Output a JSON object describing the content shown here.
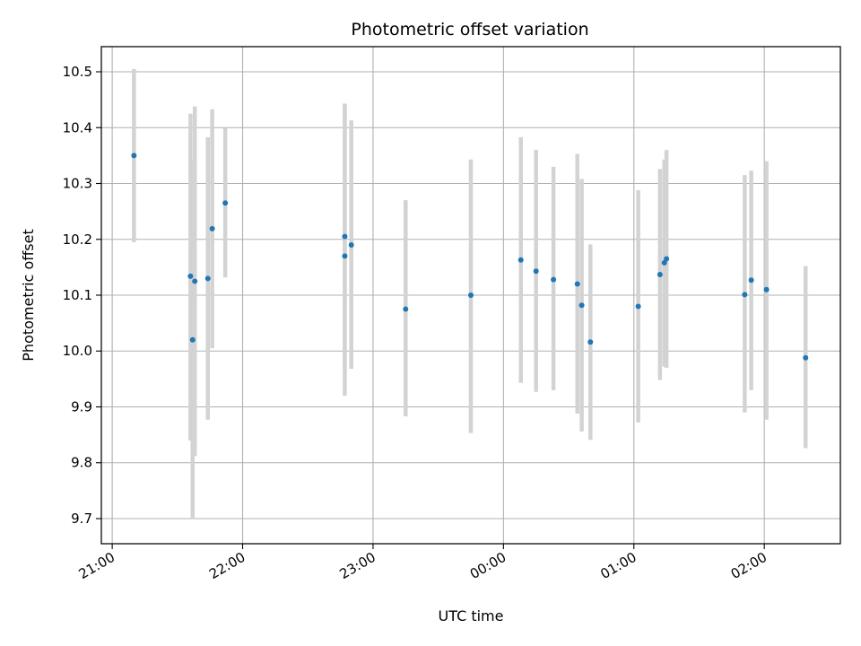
{
  "chart_data": {
    "type": "scatter",
    "title": "Photometric offset variation",
    "xlabel": "UTC time",
    "ylabel": "Photometric offset",
    "grid": true,
    "x_tick_labels": [
      "21:00",
      "22:00",
      "23:00",
      "00:00",
      "01:00",
      "02:00"
    ],
    "y_tick_labels": [
      "9.7",
      "9.8",
      "9.9",
      "10.0",
      "10.1",
      "10.2",
      "10.3",
      "10.4",
      "10.5"
    ],
    "xlim": [
      "20:55",
      "02:35"
    ],
    "ylim": [
      9.655,
      10.545
    ],
    "colors": {
      "points": "#1f77b4",
      "errorbars": "#d3d3d3",
      "grid": "#b0b0b0"
    },
    "points": [
      {
        "x": "21:10",
        "y": 10.35,
        "low": 10.195,
        "high": 10.505
      },
      {
        "x": "21:36",
        "y": 10.134,
        "low": 9.84,
        "high": 10.425
      },
      {
        "x": "21:37",
        "y": 10.02,
        "low": 9.7,
        "high": 10.342
      },
      {
        "x": "21:38",
        "y": 10.125,
        "low": 9.812,
        "high": 10.438
      },
      {
        "x": "21:44",
        "y": 10.13,
        "low": 9.877,
        "high": 10.383
      },
      {
        "x": "21:46",
        "y": 10.219,
        "low": 10.005,
        "high": 10.433
      },
      {
        "x": "21:52",
        "y": 10.265,
        "low": 10.132,
        "high": 10.4
      },
      {
        "x": "22:47",
        "y": 10.17,
        "low": 9.92,
        "high": 10.443
      },
      {
        "x": "22:47",
        "y": 10.205,
        "low": 9.965,
        "high": 10.443
      },
      {
        "x": "22:50",
        "y": 10.19,
        "low": 9.968,
        "high": 10.413
      },
      {
        "x": "23:15",
        "y": 10.075,
        "low": 9.883,
        "high": 10.27
      },
      {
        "x": "23:45",
        "y": 10.1,
        "low": 9.853,
        "high": 10.343
      },
      {
        "x": "00:08",
        "y": 10.163,
        "low": 9.943,
        "high": 10.383
      },
      {
        "x": "00:15",
        "y": 10.143,
        "low": 9.927,
        "high": 10.36
      },
      {
        "x": "00:23",
        "y": 10.128,
        "low": 9.93,
        "high": 10.33
      },
      {
        "x": "00:34",
        "y": 10.12,
        "low": 9.888,
        "high": 10.353
      },
      {
        "x": "00:36",
        "y": 10.082,
        "low": 9.856,
        "high": 10.308
      },
      {
        "x": "00:40",
        "y": 10.016,
        "low": 9.841,
        "high": 10.191
      },
      {
        "x": "01:02",
        "y": 10.08,
        "low": 9.872,
        "high": 10.288
      },
      {
        "x": "01:12",
        "y": 10.137,
        "low": 9.948,
        "high": 10.326
      },
      {
        "x": "01:14",
        "y": 10.158,
        "low": 9.972,
        "high": 10.343
      },
      {
        "x": "01:15",
        "y": 10.165,
        "low": 9.97,
        "high": 10.36
      },
      {
        "x": "01:51",
        "y": 10.101,
        "low": 9.89,
        "high": 10.315
      },
      {
        "x": "01:54",
        "y": 10.127,
        "low": 9.93,
        "high": 10.323
      },
      {
        "x": "02:01",
        "y": 10.11,
        "low": 9.877,
        "high": 10.34
      },
      {
        "x": "02:19",
        "y": 9.988,
        "low": 9.826,
        "high": 10.152
      }
    ]
  }
}
